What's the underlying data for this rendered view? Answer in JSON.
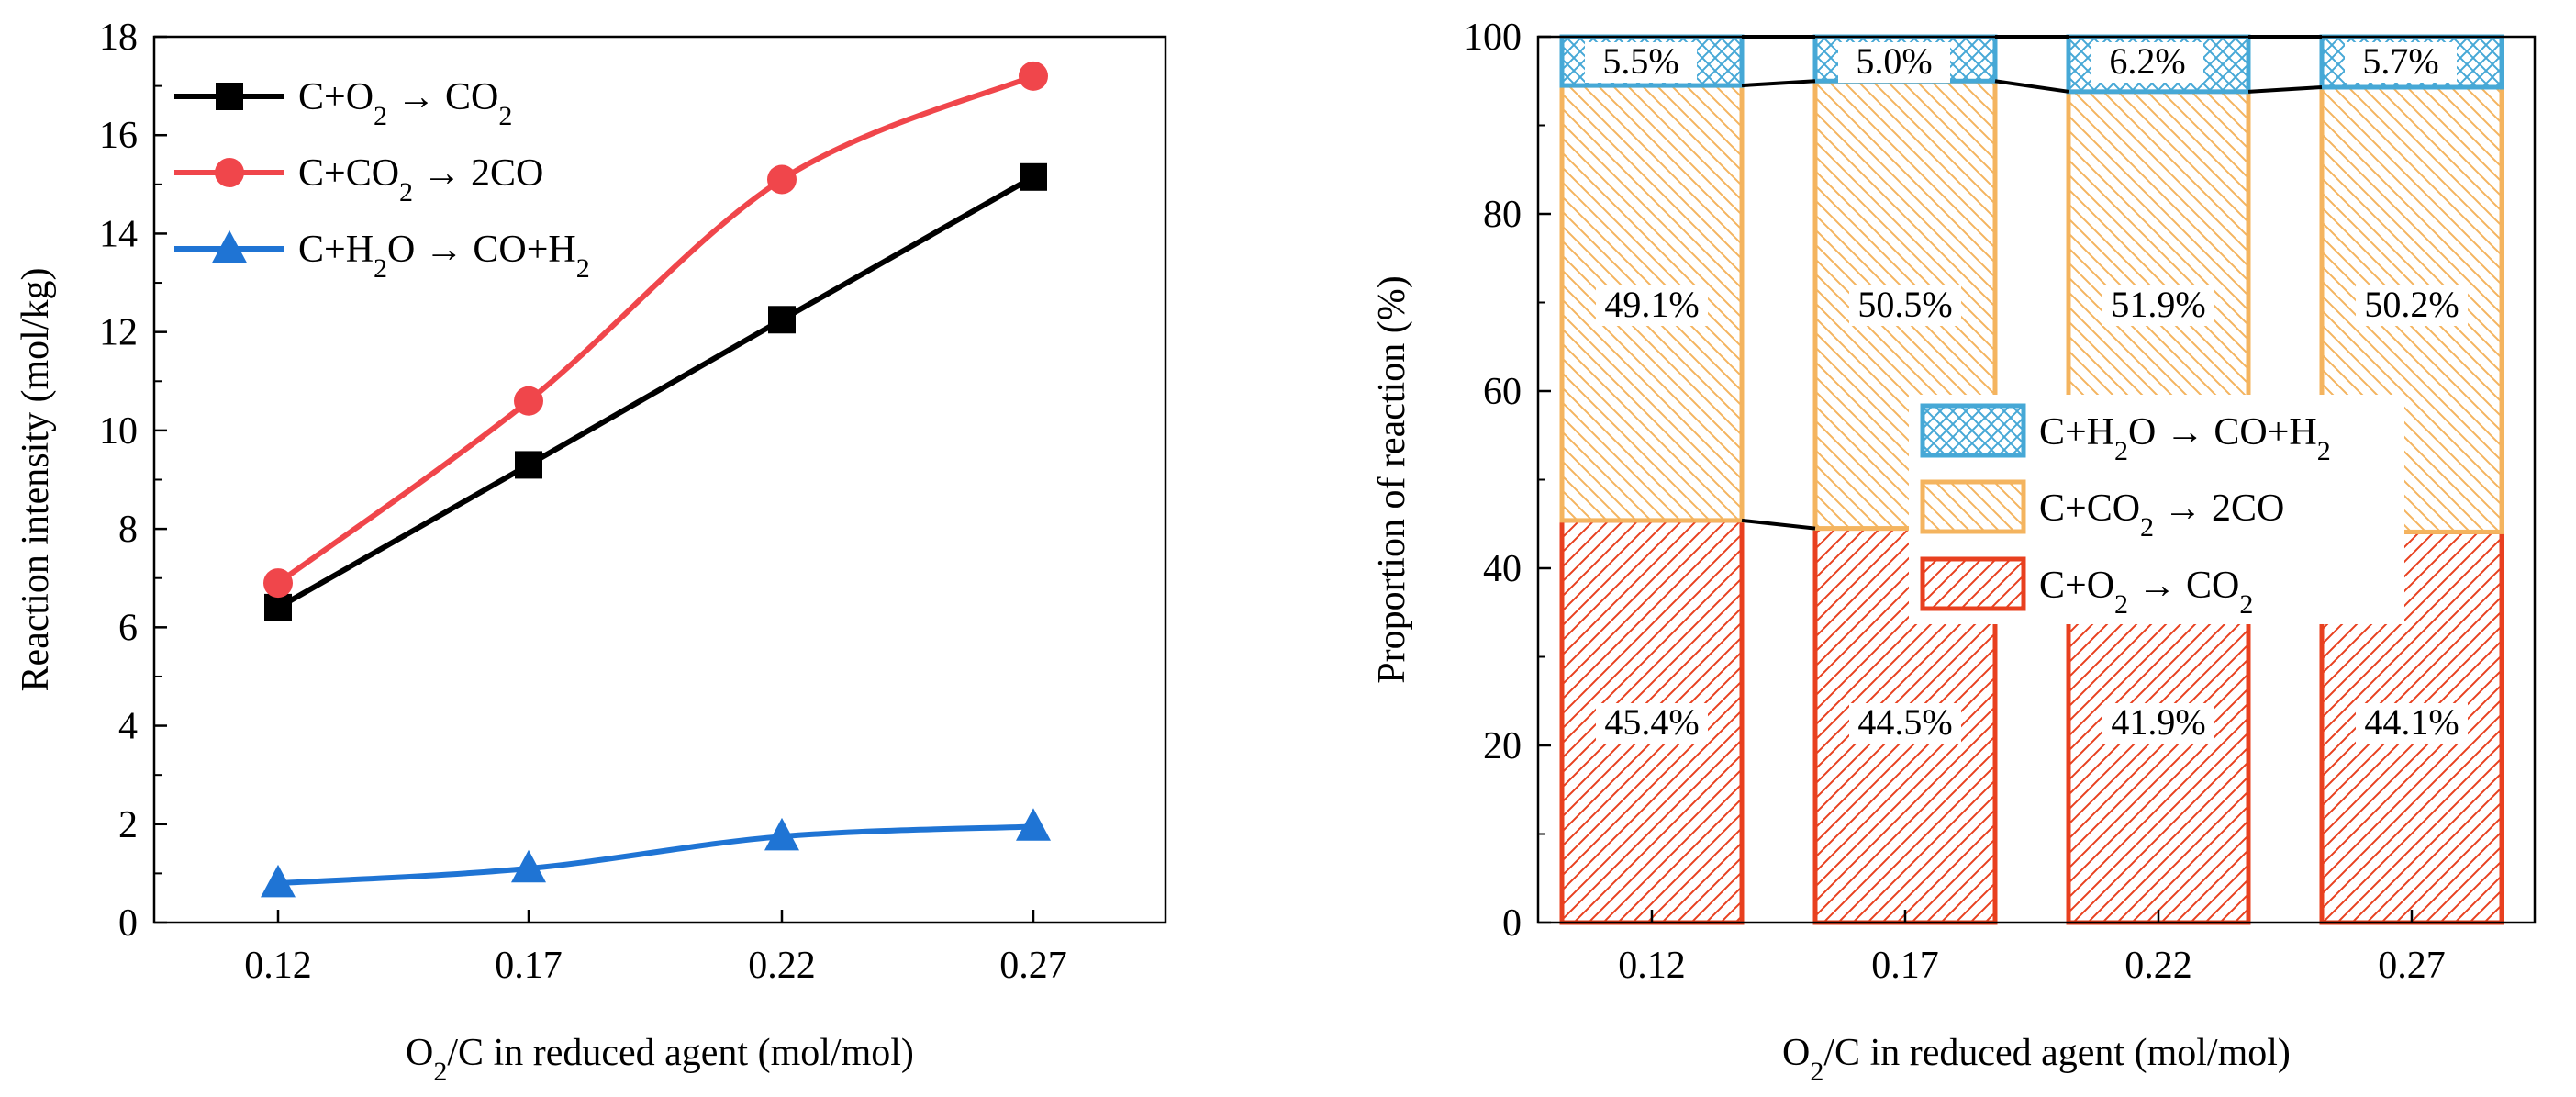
{
  "chart_data": [
    {
      "type": "line",
      "xlabel": "O2/C in reduced agent (mol/mol)",
      "ylabel": "Reaction intensity (mol/kg)",
      "categories": [
        "0.12",
        "0.17",
        "0.22",
        "0.27"
      ],
      "ylim": [
        0,
        18
      ],
      "yticks": [
        "0",
        "2",
        "4",
        "6",
        "8",
        "10",
        "12",
        "14",
        "16",
        "18"
      ],
      "legend_position": "top-left",
      "series": [
        {
          "name": "C+O2 → CO2",
          "color": "#000000",
          "marker": "square",
          "smooth": false,
          "values": [
            6.4,
            9.3,
            12.25,
            15.15
          ]
        },
        {
          "name": "C+CO2 → 2CO",
          "color": "#f0464b",
          "marker": "circle",
          "smooth": true,
          "values": [
            6.9,
            10.6,
            15.1,
            17.2
          ]
        },
        {
          "name": "C+H2O → CO+H2",
          "color": "#1f74d4",
          "marker": "triangle",
          "smooth": true,
          "values": [
            0.8,
            1.1,
            1.75,
            1.95
          ]
        }
      ]
    },
    {
      "type": "bar",
      "stacked": true,
      "xlabel": "O2/C in reduced agent (mol/mol)",
      "ylabel": "Proportion of reaction (%)",
      "categories": [
        "0.12",
        "0.17",
        "0.22",
        "0.27"
      ],
      "ylim": [
        0,
        100
      ],
      "yticks": [
        "0",
        "20",
        "40",
        "60",
        "80",
        "100"
      ],
      "legend_position": "center",
      "series": [
        {
          "name": "C+O2 → CO2",
          "color": "#e8401f",
          "pattern": "diagonal",
          "values": [
            45.4,
            44.5,
            41.9,
            44.1
          ],
          "labels": [
            "45.4%",
            "44.5%",
            "41.9%",
            "44.1%"
          ]
        },
        {
          "name": "C+CO2 → 2CO",
          "color": "#f4b45f",
          "pattern": "diagonal",
          "values": [
            49.1,
            50.5,
            51.9,
            50.2
          ],
          "labels": [
            "49.1%",
            "50.5%",
            "51.9%",
            "50.2%"
          ]
        },
        {
          "name": "C+H2O → CO+H2",
          "color": "#46a8d6",
          "pattern": "crosshatch",
          "values": [
            5.5,
            5.0,
            6.2,
            5.7
          ],
          "labels": [
            "5.5%",
            "5.0%",
            "6.2%",
            "5.7%"
          ]
        }
      ]
    }
  ],
  "legend_markup": {
    "left": [
      "C+O<sub>2</sub> → CO<sub>2</sub>",
      "C+CO<sub>2</sub> → 2CO",
      "C+H<sub>2</sub>O → CO+H<sub>2</sub>"
    ],
    "right": [
      "C+H<sub>2</sub>O → CO+H<sub>2</sub>",
      "C+CO<sub>2</sub> → 2CO",
      "C+O<sub>2</sub> → CO<sub>2</sub>"
    ]
  }
}
